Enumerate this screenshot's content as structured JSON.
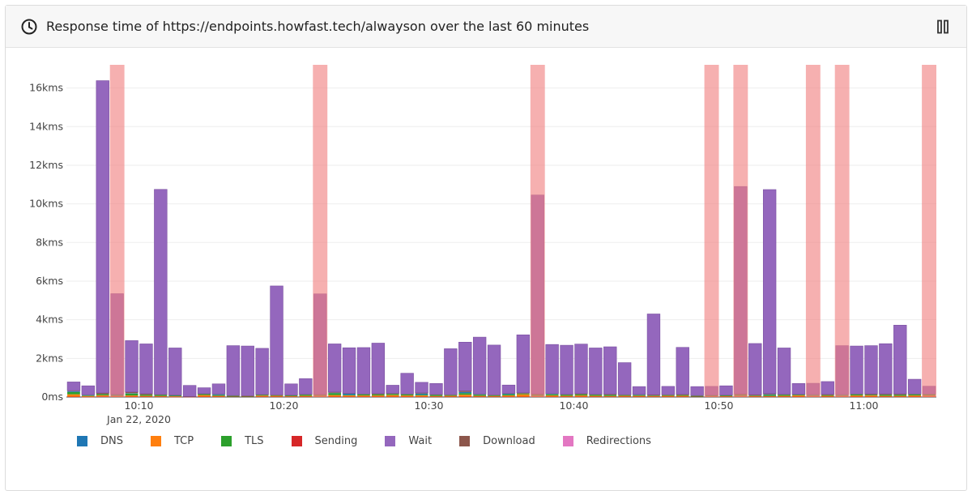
{
  "header": {
    "title": "Response time of https://endpoints.howfast.tech/alwayson over the last 60 minutes",
    "icon": "clock-icon",
    "pause_icon": "pause-icon"
  },
  "chart_data": {
    "type": "bar",
    "stacked": true,
    "title": "",
    "xlabel": "",
    "ylabel": "",
    "ylim": [
      0,
      17200
    ],
    "grid": true,
    "legend_position": "bottom",
    "y_ticks": [
      {
        "value": 0,
        "label": "0ms"
      },
      {
        "value": 2000,
        "label": "2kms"
      },
      {
        "value": 4000,
        "label": "4kms"
      },
      {
        "value": 6000,
        "label": "6kms"
      },
      {
        "value": 8000,
        "label": "8kms"
      },
      {
        "value": 10000,
        "label": "10kms"
      },
      {
        "value": 12000,
        "label": "12kms"
      },
      {
        "value": 14000,
        "label": "14kms"
      },
      {
        "value": 16000,
        "label": "16kms"
      }
    ],
    "x_range": [
      "10:05:00",
      "10:65:00"
    ],
    "x_ticks": [
      {
        "value": "10:10",
        "label": "10:10",
        "sublabel": "Jan 22, 2020"
      },
      {
        "value": "10:20",
        "label": "10:20"
      },
      {
        "value": "10:30",
        "label": "10:30"
      },
      {
        "value": "10:40",
        "label": "10:40"
      },
      {
        "value": "10:50",
        "label": "10:50"
      },
      {
        "value": "11:00",
        "label": "11:00"
      }
    ],
    "series_colors": {
      "DNS": "#1f77b4",
      "TCP": "#ff7f0e",
      "TLS": "#2ca02c",
      "Sending": "#d62728",
      "Wait": "#9467bd",
      "Download": "#8c564b",
      "Redirections": "#e377c2"
    },
    "legend": [
      "DNS",
      "TCP",
      "TLS",
      "Sending",
      "Wait",
      "Download",
      "Redirections"
    ],
    "failure_color": "#f08080",
    "failures": [
      "10:08",
      "10:22",
      "10:37",
      "10:49",
      "10:51",
      "10:56",
      "10:58",
      "11:04"
    ],
    "minutes": [
      "10:05",
      "10:06",
      "10:07",
      "10:08",
      "10:09",
      "10:10",
      "10:11",
      "10:12",
      "10:13",
      "10:14",
      "10:15",
      "10:16",
      "10:17",
      "10:18",
      "10:19",
      "10:20",
      "10:21",
      "10:22",
      "10:23",
      "10:24",
      "10:25",
      "10:26",
      "10:27",
      "10:28",
      "10:29",
      "10:30",
      "10:31",
      "10:32",
      "10:33",
      "10:34",
      "10:35",
      "10:36",
      "10:37",
      "10:38",
      "10:39",
      "10:40",
      "10:41",
      "10:42",
      "10:43",
      "10:44",
      "10:45",
      "10:46",
      "10:47",
      "10:48",
      "10:49",
      "10:50",
      "10:51",
      "10:52",
      "10:53",
      "10:54",
      "10:55",
      "10:56",
      "10:57",
      "10:58",
      "10:59",
      "11:00",
      "11:01",
      "11:02",
      "11:03",
      "11:04"
    ],
    "series": [
      {
        "name": "DNS",
        "values": [
          40,
          20,
          0,
          30,
          20,
          0,
          0,
          10,
          0,
          0,
          40,
          0,
          0,
          0,
          0,
          0,
          0,
          0,
          20,
          60,
          0,
          0,
          0,
          0,
          60,
          0,
          0,
          60,
          20,
          0,
          30,
          0,
          0,
          20,
          0,
          0,
          0,
          0,
          0,
          20,
          0,
          0,
          0,
          0,
          0,
          0,
          0,
          0,
          30,
          0,
          0,
          20,
          0,
          20,
          0,
          0,
          0,
          0,
          0,
          0
        ]
      },
      {
        "name": "TCP",
        "values": [
          120,
          40,
          60,
          40,
          60,
          40,
          30,
          30,
          0,
          80,
          40,
          0,
          0,
          50,
          40,
          20,
          40,
          40,
          80,
          60,
          60,
          60,
          80,
          60,
          60,
          30,
          40,
          100,
          40,
          30,
          60,
          120,
          40,
          60,
          40,
          60,
          40,
          30,
          40,
          40,
          30,
          40,
          40,
          0,
          20,
          20,
          40,
          30,
          30,
          40,
          60,
          40,
          40,
          40,
          60,
          60,
          40,
          40,
          60,
          60
        ]
      },
      {
        "name": "TLS",
        "values": [
          120,
          30,
          60,
          40,
          100,
          60,
          60,
          40,
          0,
          60,
          40,
          40,
          30,
          40,
          30,
          40,
          60,
          40,
          100,
          30,
          60,
          60,
          60,
          60,
          40,
          60,
          40,
          80,
          60,
          40,
          60,
          40,
          60,
          60,
          60,
          60,
          60,
          60,
          40,
          40,
          30,
          40,
          40,
          40,
          40,
          40,
          60,
          30,
          60,
          60,
          40,
          40,
          40,
          40,
          60,
          40,
          60,
          60,
          60,
          60
        ]
      },
      {
        "name": "Sending",
        "values": [
          20,
          10,
          30,
          20,
          20,
          20,
          20,
          10,
          10,
          20,
          20,
          20,
          20,
          20,
          20,
          20,
          20,
          20,
          20,
          20,
          20,
          20,
          20,
          20,
          20,
          20,
          20,
          20,
          20,
          20,
          20,
          20,
          20,
          20,
          20,
          20,
          20,
          20,
          20,
          20,
          20,
          20,
          20,
          20,
          20,
          20,
          20,
          20,
          20,
          20,
          20,
          20,
          20,
          20,
          20,
          20,
          20,
          20,
          20,
          20
        ]
      },
      {
        "name": "Wait",
        "values": [
          450,
          460,
          16170,
          5200,
          2660,
          2580,
          10620,
          2430,
          570,
          310,
          520,
          2580,
          2570,
          2390,
          5640,
          580,
          810,
          5200,
          2490,
          2360,
          2400,
          2610,
          420,
          1070,
          540,
          570,
          2380,
          2520,
          2940,
          2580,
          430,
          3000,
          10300,
          2540,
          2540,
          2560,
          2400,
          2450,
          1660,
          400,
          4180,
          430,
          2430,
          460,
          450,
          480,
          10740,
          2650,
          10560,
          2400,
          560,
          570,
          660,
          2520,
          2480,
          2500,
          2600,
          3560,
          760,
          400
        ]
      },
      {
        "name": "Download",
        "values": [
          30,
          20,
          60,
          20,
          60,
          50,
          20,
          20,
          20,
          10,
          20,
          20,
          20,
          20,
          20,
          20,
          20,
          40,
          40,
          20,
          20,
          40,
          30,
          20,
          40,
          20,
          20,
          60,
          20,
          20,
          20,
          40,
          40,
          20,
          20,
          40,
          20,
          40,
          20,
          20,
          40,
          20,
          40,
          20,
          20,
          20,
          40,
          40,
          40,
          20,
          20,
          20,
          40,
          20,
          20,
          40,
          40,
          40,
          20,
          20
        ]
      },
      {
        "name": "Redirections",
        "values": [
          0,
          0,
          0,
          0,
          0,
          0,
          0,
          0,
          0,
          0,
          0,
          0,
          0,
          0,
          0,
          0,
          0,
          0,
          0,
          0,
          0,
          0,
          0,
          0,
          0,
          0,
          0,
          0,
          0,
          0,
          0,
          0,
          0,
          0,
          0,
          0,
          0,
          0,
          0,
          0,
          0,
          0,
          0,
          0,
          0,
          0,
          0,
          0,
          0,
          0,
          0,
          0,
          0,
          0,
          0,
          0,
          0,
          0,
          0,
          0
        ]
      }
    ]
  }
}
